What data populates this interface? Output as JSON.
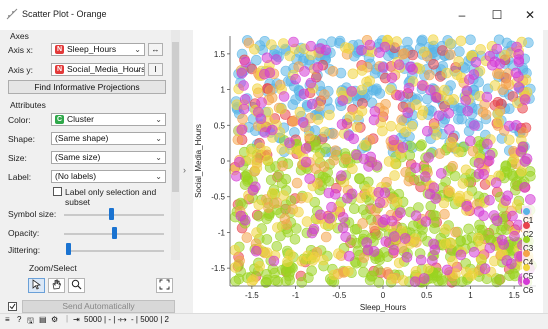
{
  "window": {
    "title": "Scatter Plot - Orange",
    "minimize": "–",
    "maximize": "☐",
    "close": "✕"
  },
  "axes": {
    "section": "Axes",
    "x_label": "Axis x:",
    "x_value": "Sleep_Hours",
    "x_badge": "N",
    "y_label": "Axis y:",
    "y_value": "Social_Media_Hours",
    "y_badge": "N",
    "x_button": "↔",
    "y_button": "I"
  },
  "find_button": "Find Informative Projections",
  "attributes": {
    "section": "Attributes",
    "color_label": "Color:",
    "color_value": "Cluster",
    "color_badge": "C",
    "shape_label": "Shape:",
    "shape_value": "(Same shape)",
    "size_label": "Size:",
    "size_value": "(Same size)",
    "label_label": "Label:",
    "label_value": "(No labels)",
    "label_only": "Label only selection and subset"
  },
  "sliders": {
    "symbol_size_label": "Symbol size:",
    "symbol_size": 0.5,
    "opacity_label": "Opacity:",
    "opacity": 0.5,
    "jittering_label": "Jittering:",
    "jittering": 0.0
  },
  "zoom_select": {
    "section": "Zoom/Select"
  },
  "send_button": "Send Automatically",
  "status": {
    "in_data": "5000 | - | -",
    "out_data": "- | 5000 | 2"
  },
  "plot": {
    "xlabel": "Sleep_Hours",
    "ylabel": "Social_Media_Hours",
    "xticks": [
      "-1.5",
      "-1",
      "-0.5",
      "0",
      "0.5",
      "1",
      "1.5"
    ],
    "yticks": [
      "1.5",
      "1",
      "0.5",
      "0",
      "-0.5",
      "-1",
      "-1.5"
    ]
  },
  "colors": {
    "C1": "#5ab4e6",
    "C2": "#e8434b",
    "C3": "#9ad321",
    "C4": "#f4a44a",
    "C5": "#f0d43c",
    "C6": "#d43ad6"
  },
  "chart_data": {
    "type": "scatter",
    "xlabel": "Sleep_Hours",
    "ylabel": "Social_Media_Hours",
    "xlim": [
      -1.75,
      1.75
    ],
    "ylim": [
      -1.75,
      1.75
    ],
    "grid": false,
    "legend_position": "bottom-right",
    "series": [
      {
        "name": "C1",
        "color": "#5ab4e6",
        "x_range": [
          -1.7,
          1.7
        ],
        "y_range": [
          0.2,
          1.7
        ]
      },
      {
        "name": "C2",
        "color": "#e8434b",
        "x_range": [
          -1.7,
          1.7
        ],
        "y_range": [
          -1.7,
          1.7
        ]
      },
      {
        "name": "C3",
        "color": "#9ad321",
        "x_range": [
          -1.7,
          1.7
        ],
        "y_range": [
          -1.7,
          0.2
        ]
      },
      {
        "name": "C4",
        "color": "#f4a44a",
        "x_range": [
          -1.7,
          1.7
        ],
        "y_range": [
          -1.7,
          1.7
        ]
      },
      {
        "name": "C5",
        "color": "#f0d43c",
        "x_range": [
          -1.7,
          1.7
        ],
        "y_range": [
          -1.7,
          1.7
        ]
      },
      {
        "name": "C6",
        "color": "#d43ad6",
        "x_range": [
          -1.7,
          1.7
        ],
        "y_range": [
          -1.7,
          1.7
        ]
      }
    ]
  }
}
